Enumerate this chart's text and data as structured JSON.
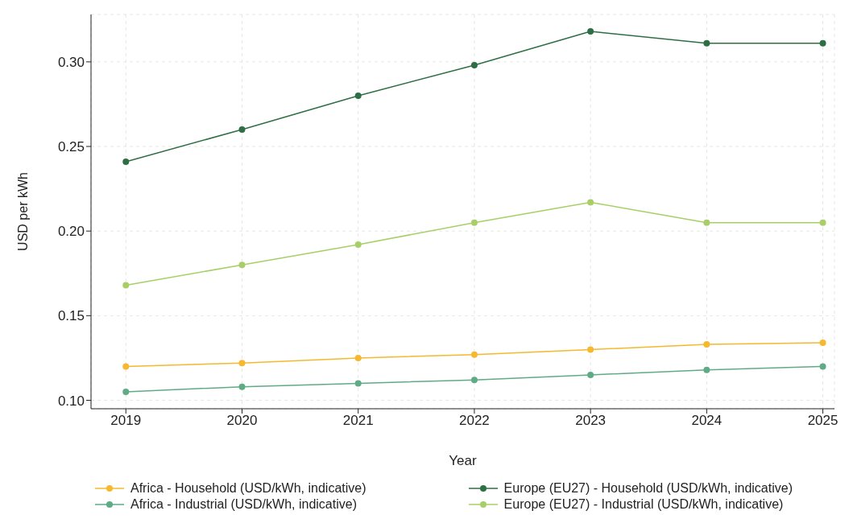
{
  "chart_data": {
    "type": "line",
    "xlabel": "Year",
    "ylabel": "USD per kWh",
    "x": [
      2019,
      2020,
      2021,
      2022,
      2023,
      2024,
      2025
    ],
    "series": [
      {
        "name": "Africa - Household (USD/kWh, indicative)",
        "color": "#f5b82e",
        "values": [
          0.12,
          0.122,
          0.125,
          0.127,
          0.13,
          0.133,
          0.134
        ]
      },
      {
        "name": "Africa - Industrial (USD/kWh, indicative)",
        "color": "#5fab86",
        "values": [
          0.105,
          0.108,
          0.11,
          0.112,
          0.115,
          0.118,
          0.12
        ]
      },
      {
        "name": "Europe (EU27) - Household (USD/kWh, indicative)",
        "color": "#2e6e45",
        "values": [
          0.241,
          0.26,
          0.28,
          0.298,
          0.318,
          0.311,
          0.311
        ]
      },
      {
        "name": "Europe (EU27) - Industrial (USD/kWh, indicative)",
        "color": "#a8cf66",
        "values": [
          0.168,
          0.18,
          0.192,
          0.205,
          0.217,
          0.205,
          0.205
        ]
      }
    ],
    "xlim": [
      2018.7,
      2025.1
    ],
    "xticks": [
      2019,
      2020,
      2021,
      2022,
      2023,
      2024,
      2025
    ],
    "ylim": [
      0.095,
      0.328
    ],
    "yticks": [
      {
        "value": 0.1,
        "label": "0.10"
      },
      {
        "value": 0.15,
        "label": "0.15"
      },
      {
        "value": 0.2,
        "label": "0.20"
      },
      {
        "value": 0.25,
        "label": "0.25"
      },
      {
        "value": 0.3,
        "label": "0.30"
      }
    ],
    "grid": true,
    "legend": "bottom",
    "marker": "circle",
    "line_style": "solid"
  }
}
